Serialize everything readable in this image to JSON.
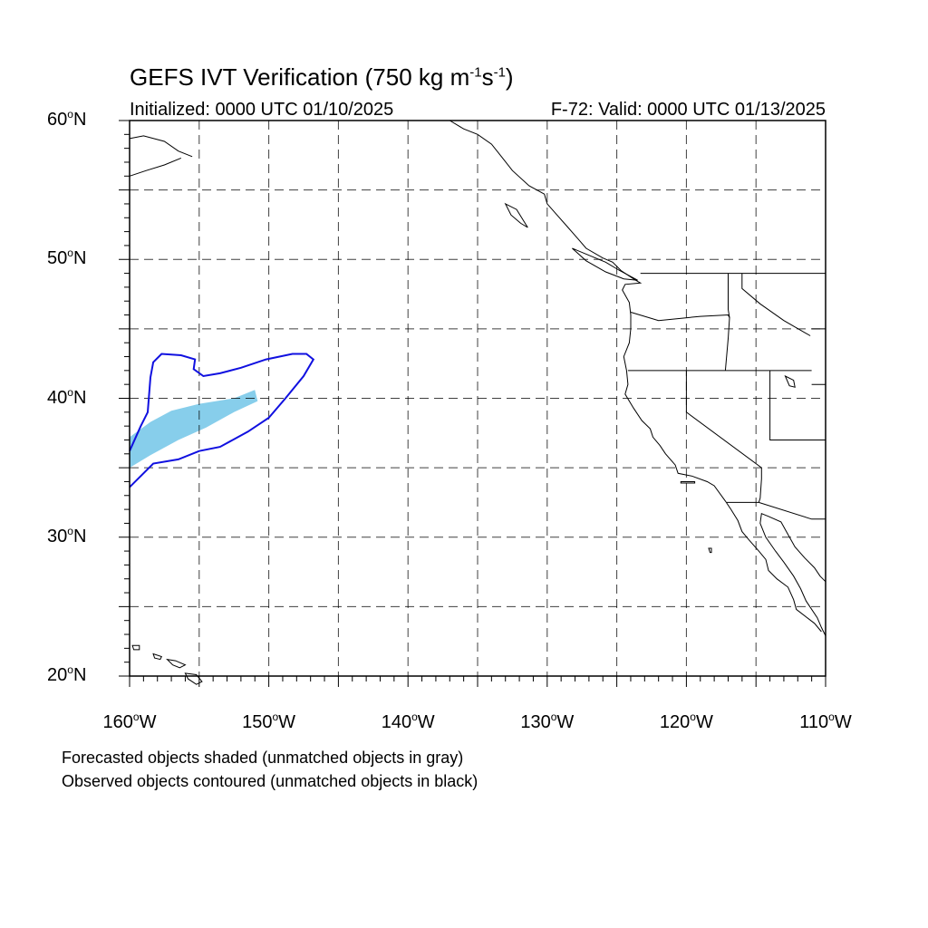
{
  "title": {
    "text": "GEFS IVT Verification (750 kg m",
    "sup1": "-1",
    "mid": "s",
    "sup2": "-1",
    "end": ")"
  },
  "initialized": "Initialized: 0000 UTC 01/10/2025",
  "valid": "F-72: Valid: 0000 UTC 01/13/2025",
  "notes": [
    "Forecasted objects shaded (unmatched objects in gray)",
    "Observed objects contoured (unmatched objects in black)"
  ],
  "map": {
    "lat_range": [
      20,
      60
    ],
    "lon_range": [
      -160,
      -110
    ],
    "lat_labels": [
      {
        "lat": 60,
        "num": "60",
        "deg": "o",
        "hem": "N"
      },
      {
        "lat": 50,
        "num": "50",
        "deg": "o",
        "hem": "N"
      },
      {
        "lat": 40,
        "num": "40",
        "deg": "o",
        "hem": "N"
      },
      {
        "lat": 30,
        "num": "30",
        "deg": "o",
        "hem": "N"
      },
      {
        "lat": 20,
        "num": "20",
        "deg": "o",
        "hem": "N"
      }
    ],
    "lon_labels": [
      {
        "lon": -160,
        "num": "160",
        "deg": "o",
        "hem": "W"
      },
      {
        "lon": -150,
        "num": "150",
        "deg": "o",
        "hem": "W"
      },
      {
        "lon": -140,
        "num": "140",
        "deg": "o",
        "hem": "W"
      },
      {
        "lon": -130,
        "num": "130",
        "deg": "o",
        "hem": "W"
      },
      {
        "lon": -120,
        "num": "120",
        "deg": "o",
        "hem": "W"
      },
      {
        "lon": -110,
        "num": "110",
        "deg": "o",
        "hem": "W"
      }
    ],
    "gridline_spacing_deg": 5,
    "forecast_object_color": "#87CEEB",
    "observed_contour_color": "#1010E0",
    "forecast_object": [
      [
        -160,
        37.2
      ],
      [
        -158.5,
        38.3
      ],
      [
        -157,
        39.1
      ],
      [
        -155,
        39.6
      ],
      [
        -152.5,
        40.0
      ],
      [
        -151,
        40.6
      ],
      [
        -150.8,
        39.8
      ],
      [
        -152.5,
        39.0
      ],
      [
        -154.5,
        37.9
      ],
      [
        -156.5,
        37.0
      ],
      [
        -158.5,
        35.9
      ],
      [
        -160,
        35.0
      ]
    ],
    "observed_contour": [
      [
        -160,
        33.6
      ],
      [
        -158.3,
        35.3
      ],
      [
        -156.5,
        35.6
      ],
      [
        -155,
        36.2
      ],
      [
        -153.5,
        36.5
      ],
      [
        -151.5,
        37.6
      ],
      [
        -150,
        38.6
      ],
      [
        -148.8,
        40.0
      ],
      [
        -147.5,
        41.6
      ],
      [
        -146.8,
        42.8
      ],
      [
        -147.3,
        43.2
      ],
      [
        -148.3,
        43.2
      ],
      [
        -150.2,
        42.8
      ],
      [
        -152,
        42.2
      ],
      [
        -153.5,
        41.8
      ],
      [
        -154.7,
        41.6
      ],
      [
        -155.4,
        42.1
      ],
      [
        -155.3,
        42.8
      ],
      [
        -156.3,
        43.1
      ],
      [
        -157.7,
        43.2
      ],
      [
        -158.3,
        42.6
      ],
      [
        -158.5,
        41.5
      ],
      [
        -158.7,
        39.0
      ],
      [
        -159.2,
        38.0
      ],
      [
        -160,
        36.2
      ]
    ]
  }
}
